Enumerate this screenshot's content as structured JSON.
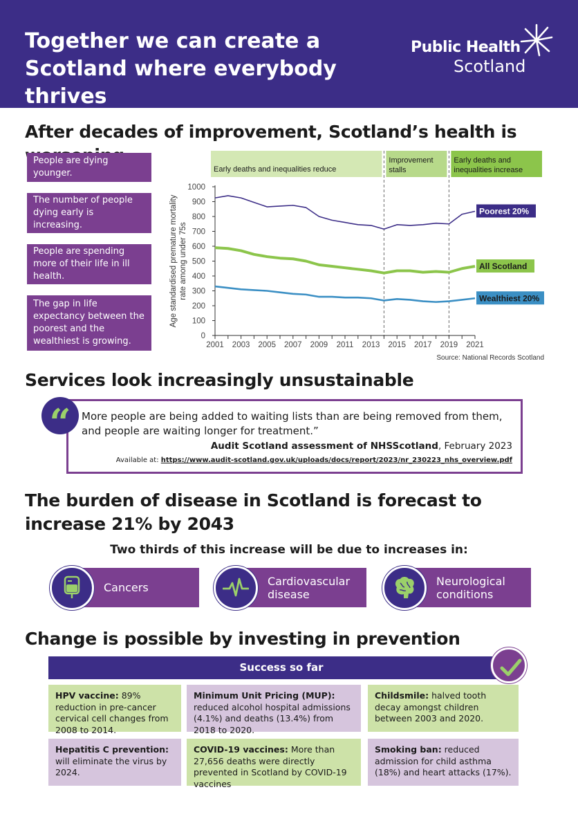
{
  "header": {
    "title": "Together we can create a Scotland where everybody thrives",
    "logo_line1": "Public Health",
    "logo_line2": "Scotland"
  },
  "section1": {
    "heading": "After decades of improvement, Scotland’s health is worsening",
    "facts": [
      "People are dying younger.",
      "The number of people dying early is increasing.",
      "People are spending more of their life in ill health.",
      "The gap in life expectancy between the poorest and the wealthiest is growing."
    ]
  },
  "chart_data": {
    "type": "line",
    "ylabel": "Age standardised premature mortality rate among under 75s",
    "ylim": [
      0,
      1000
    ],
    "yticks": [
      "0",
      "100",
      "200",
      "300",
      "400",
      "500",
      "600",
      "700",
      "800",
      "900",
      "1000"
    ],
    "xticks": [
      "2001",
      "2003",
      "2005",
      "2007",
      "2009",
      "2011",
      "2013",
      "2015",
      "2017",
      "2019",
      "2021"
    ],
    "x": [
      2001,
      2002,
      2003,
      2004,
      2005,
      2006,
      2007,
      2008,
      2009,
      2010,
      2011,
      2012,
      2013,
      2014,
      2015,
      2016,
      2017,
      2018,
      2019,
      2020,
      2021
    ],
    "series": [
      {
        "name": "Poorest 20%",
        "color": "#3c2d87",
        "values": [
          925,
          940,
          925,
          895,
          865,
          870,
          875,
          860,
          800,
          775,
          760,
          745,
          740,
          715,
          745,
          740,
          745,
          755,
          750,
          815,
          835
        ]
      },
      {
        "name": "All Scotland",
        "color": "#8cc54b",
        "values": [
          590,
          585,
          570,
          545,
          530,
          520,
          515,
          500,
          475,
          465,
          455,
          445,
          435,
          420,
          435,
          435,
          425,
          430,
          425,
          450,
          465
        ]
      },
      {
        "name": "Wealthiest 20%",
        "color": "#3b8fc4",
        "values": [
          330,
          320,
          310,
          305,
          300,
          290,
          280,
          275,
          260,
          260,
          255,
          255,
          250,
          235,
          245,
          240,
          230,
          225,
          230,
          240,
          250
        ]
      }
    ],
    "phases": [
      {
        "label": "Early deaths and inequalities reduce",
        "from": 2001,
        "to": 2014
      },
      {
        "label": "Improvement stalls",
        "from": 2014,
        "to": 2019
      },
      {
        "label": "Early deaths and inequalities increase",
        "from": 2019,
        "to": 2021
      }
    ],
    "phase_boundaries": [
      2014,
      2019
    ],
    "source": "Source: National Records Scotland"
  },
  "section2": {
    "heading": "Services look increasingly unsustainable",
    "quote": "More people are being added to waiting lists than are being removed from them, and people are waiting longer for treatment.”",
    "source_bold": "Audit Scotland assessment of NHSScotland",
    "source_date": ", February 2023",
    "available_label": "Available at: ",
    "link": "https://www.audit-scotland.gov.uk/uploads/docs/report/2023/nr_230223_nhs_overview.pdf"
  },
  "section3": {
    "heading": "The burden of disease in Scotland is forecast to increase 21% by 2043",
    "subheading": "Two thirds of this increase will be due to increases in:",
    "diseases": [
      "Cancers",
      "Cardiovascular disease",
      "Neurological conditions"
    ]
  },
  "section4": {
    "heading": "Change is possible by investing in prevention",
    "banner": "Success so far",
    "cards": [
      {
        "title": "HPV vaccine:",
        "text": " 89% reduction in pre-cancer cervical cell changes from 2008 to 2014."
      },
      {
        "title": "Minimum Unit Pricing (MUP):",
        "text": " reduced alcohol hospital admissions (4.1%) and deaths (13.4%) from 2018 to 2020."
      },
      {
        "title": "Childsmile:",
        "text": " halved tooth decay amongst children between 2003 and 2020."
      },
      {
        "title": "Hepatitis C prevention:",
        "text": " will eliminate the virus by 2024."
      },
      {
        "title": "COVID-19 vaccines:",
        "text": " More than 27,656 deaths were directly prevented in Scotland by COVID-19 vaccines"
      },
      {
        "title": "Smoking ban:",
        "text": " reduced admission for child asthma (18%) and heart attacks (17%)."
      }
    ]
  }
}
